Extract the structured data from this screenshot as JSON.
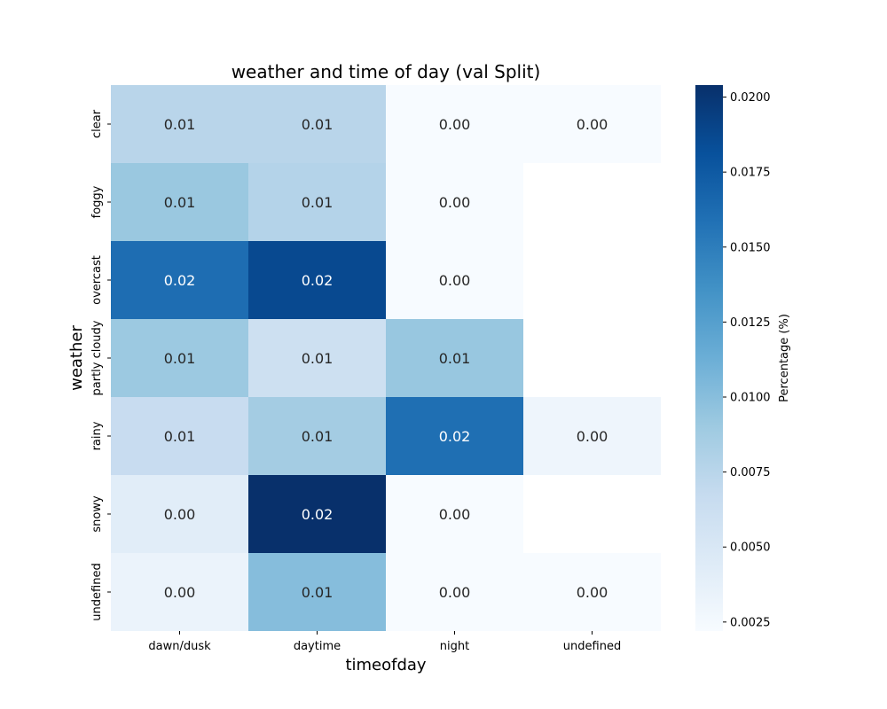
{
  "chart_data": {
    "type": "heatmap",
    "title": "weather and time of day (val Split)",
    "xlabel": "timeofday",
    "ylabel": "weather",
    "x_categories": [
      "dawn/dusk",
      "daytime",
      "night",
      "undefined"
    ],
    "y_categories": [
      "clear",
      "foggy",
      "overcast",
      "partly cloudy",
      "rainy",
      "snowy",
      "undefined"
    ],
    "values": [
      [
        0.0075,
        0.0075,
        0.0022,
        0.0022
      ],
      [
        0.0092,
        0.0078,
        0.0022,
        null
      ],
      [
        0.0161,
        0.0187,
        0.0022,
        null
      ],
      [
        0.0091,
        0.0061,
        0.0093,
        null
      ],
      [
        0.0066,
        0.0087,
        0.016,
        0.003
      ],
      [
        0.0042,
        0.0204,
        0.0022,
        null
      ],
      [
        0.0033,
        0.0101,
        0.0022,
        0.0022
      ]
    ],
    "annotations": [
      [
        "0.01",
        "0.01",
        "0.00",
        "0.00"
      ],
      [
        "0.01",
        "0.01",
        "0.00",
        null
      ],
      [
        "0.02",
        "0.02",
        "0.00",
        null
      ],
      [
        "0.01",
        "0.01",
        "0.01",
        null
      ],
      [
        "0.01",
        "0.01",
        "0.02",
        "0.00"
      ],
      [
        "0.00",
        "0.02",
        "0.00",
        null
      ],
      [
        "0.00",
        "0.01",
        "0.00",
        "0.00"
      ]
    ],
    "colorbar": {
      "label": "Percentage (%)",
      "range": [
        0.0022,
        0.0204
      ],
      "ticks": [
        "0.0025",
        "0.0050",
        "0.0075",
        "0.0100",
        "0.0125",
        "0.0150",
        "0.0175",
        "0.0200"
      ],
      "tick_values": [
        0.0025,
        0.005,
        0.0075,
        0.01,
        0.0125,
        0.015,
        0.0175,
        0.02
      ]
    },
    "colormap": "Blues",
    "colormap_stops": [
      "#f7fbff",
      "#deebf7",
      "#c6dbef",
      "#9ecae1",
      "#6baed6",
      "#4292c6",
      "#2171b5",
      "#08519c",
      "#08306b"
    ]
  }
}
